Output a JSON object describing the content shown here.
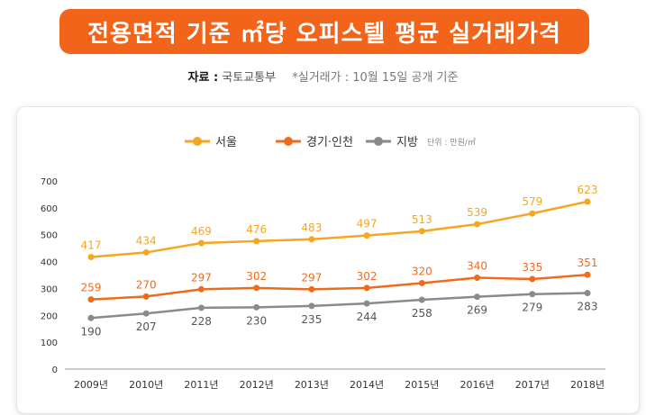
{
  "header": {
    "title": "전용면적 기준 ㎡당 오피스텔 평균 실거래가격",
    "source_label": "자료 :",
    "source_value": "국토교통부",
    "source_note": "*실거래가 : 10월 15일 공개 기준"
  },
  "chart_data": {
    "type": "line",
    "title": "전용면적 기준 ㎡당 오피스텔 평균 실거래가격",
    "unit": "단위 : 만원/㎡",
    "categories": [
      "2009년",
      "2010년",
      "2011년",
      "2012년",
      "2013년",
      "2014년",
      "2015년",
      "2016년",
      "2017년",
      "2018년"
    ],
    "series": [
      {
        "name": "서울",
        "color": "#f5a623",
        "values": [
          417,
          434,
          469,
          476,
          483,
          497,
          513,
          539,
          579,
          623
        ]
      },
      {
        "name": "경기·인천",
        "color": "#ee6b1e",
        "values": [
          259,
          270,
          297,
          302,
          297,
          302,
          320,
          340,
          335,
          351
        ]
      },
      {
        "name": "지방",
        "color": "#8a8a8a",
        "values": [
          190,
          207,
          228,
          230,
          235,
          244,
          258,
          269,
          279,
          283
        ]
      }
    ],
    "yticks": [
      0,
      100,
      200,
      300,
      400,
      500,
      600,
      700
    ],
    "ylim": [
      0,
      700
    ],
    "xlabel": "",
    "ylabel": "",
    "legend": "top-center",
    "grid": false
  }
}
